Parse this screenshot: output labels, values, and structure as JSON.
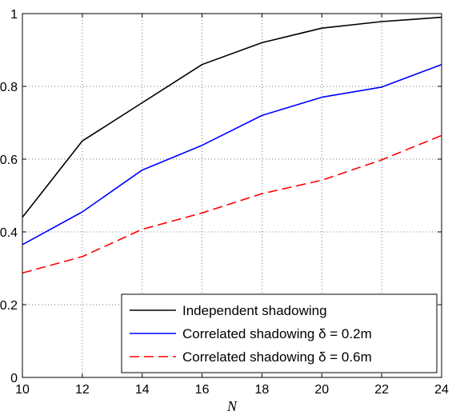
{
  "chart_data": {
    "type": "line",
    "title": "",
    "xlabel": "N",
    "ylabel": "",
    "xlim": [
      10,
      24
    ],
    "ylim": [
      0,
      1
    ],
    "x_ticks": [
      10,
      12,
      14,
      16,
      18,
      20,
      22,
      24
    ],
    "y_ticks": [
      0,
      0.2,
      0.4,
      0.6,
      0.8,
      1
    ],
    "x_tick_labels": [
      "10",
      "12",
      "14",
      "16",
      "18",
      "20",
      "22",
      "24"
    ],
    "y_tick_labels": [
      "0",
      "0.2",
      "0.4",
      "0.6",
      "0.8",
      "1"
    ],
    "grid": true,
    "legend_position": "bottom-right",
    "x": [
      10,
      12,
      14,
      16,
      18,
      20,
      22,
      24
    ],
    "series": [
      {
        "name": "Independent shadowing",
        "values": [
          0.44,
          0.65,
          0.755,
          0.86,
          0.92,
          0.96,
          0.978,
          0.99
        ],
        "color": "#000000",
        "dash": "solid"
      },
      {
        "name": "Correlated shadowing δ = 0.2m",
        "values": [
          0.365,
          0.455,
          0.57,
          0.638,
          0.72,
          0.77,
          0.798,
          0.86
        ],
        "color": "#0000ff",
        "dash": "solid"
      },
      {
        "name": "Correlated shadowing δ = 0.6m",
        "values": [
          0.287,
          0.332,
          0.407,
          0.452,
          0.505,
          0.542,
          0.598,
          0.665
        ],
        "color": "#ff0000",
        "dash": "dashed"
      }
    ]
  }
}
